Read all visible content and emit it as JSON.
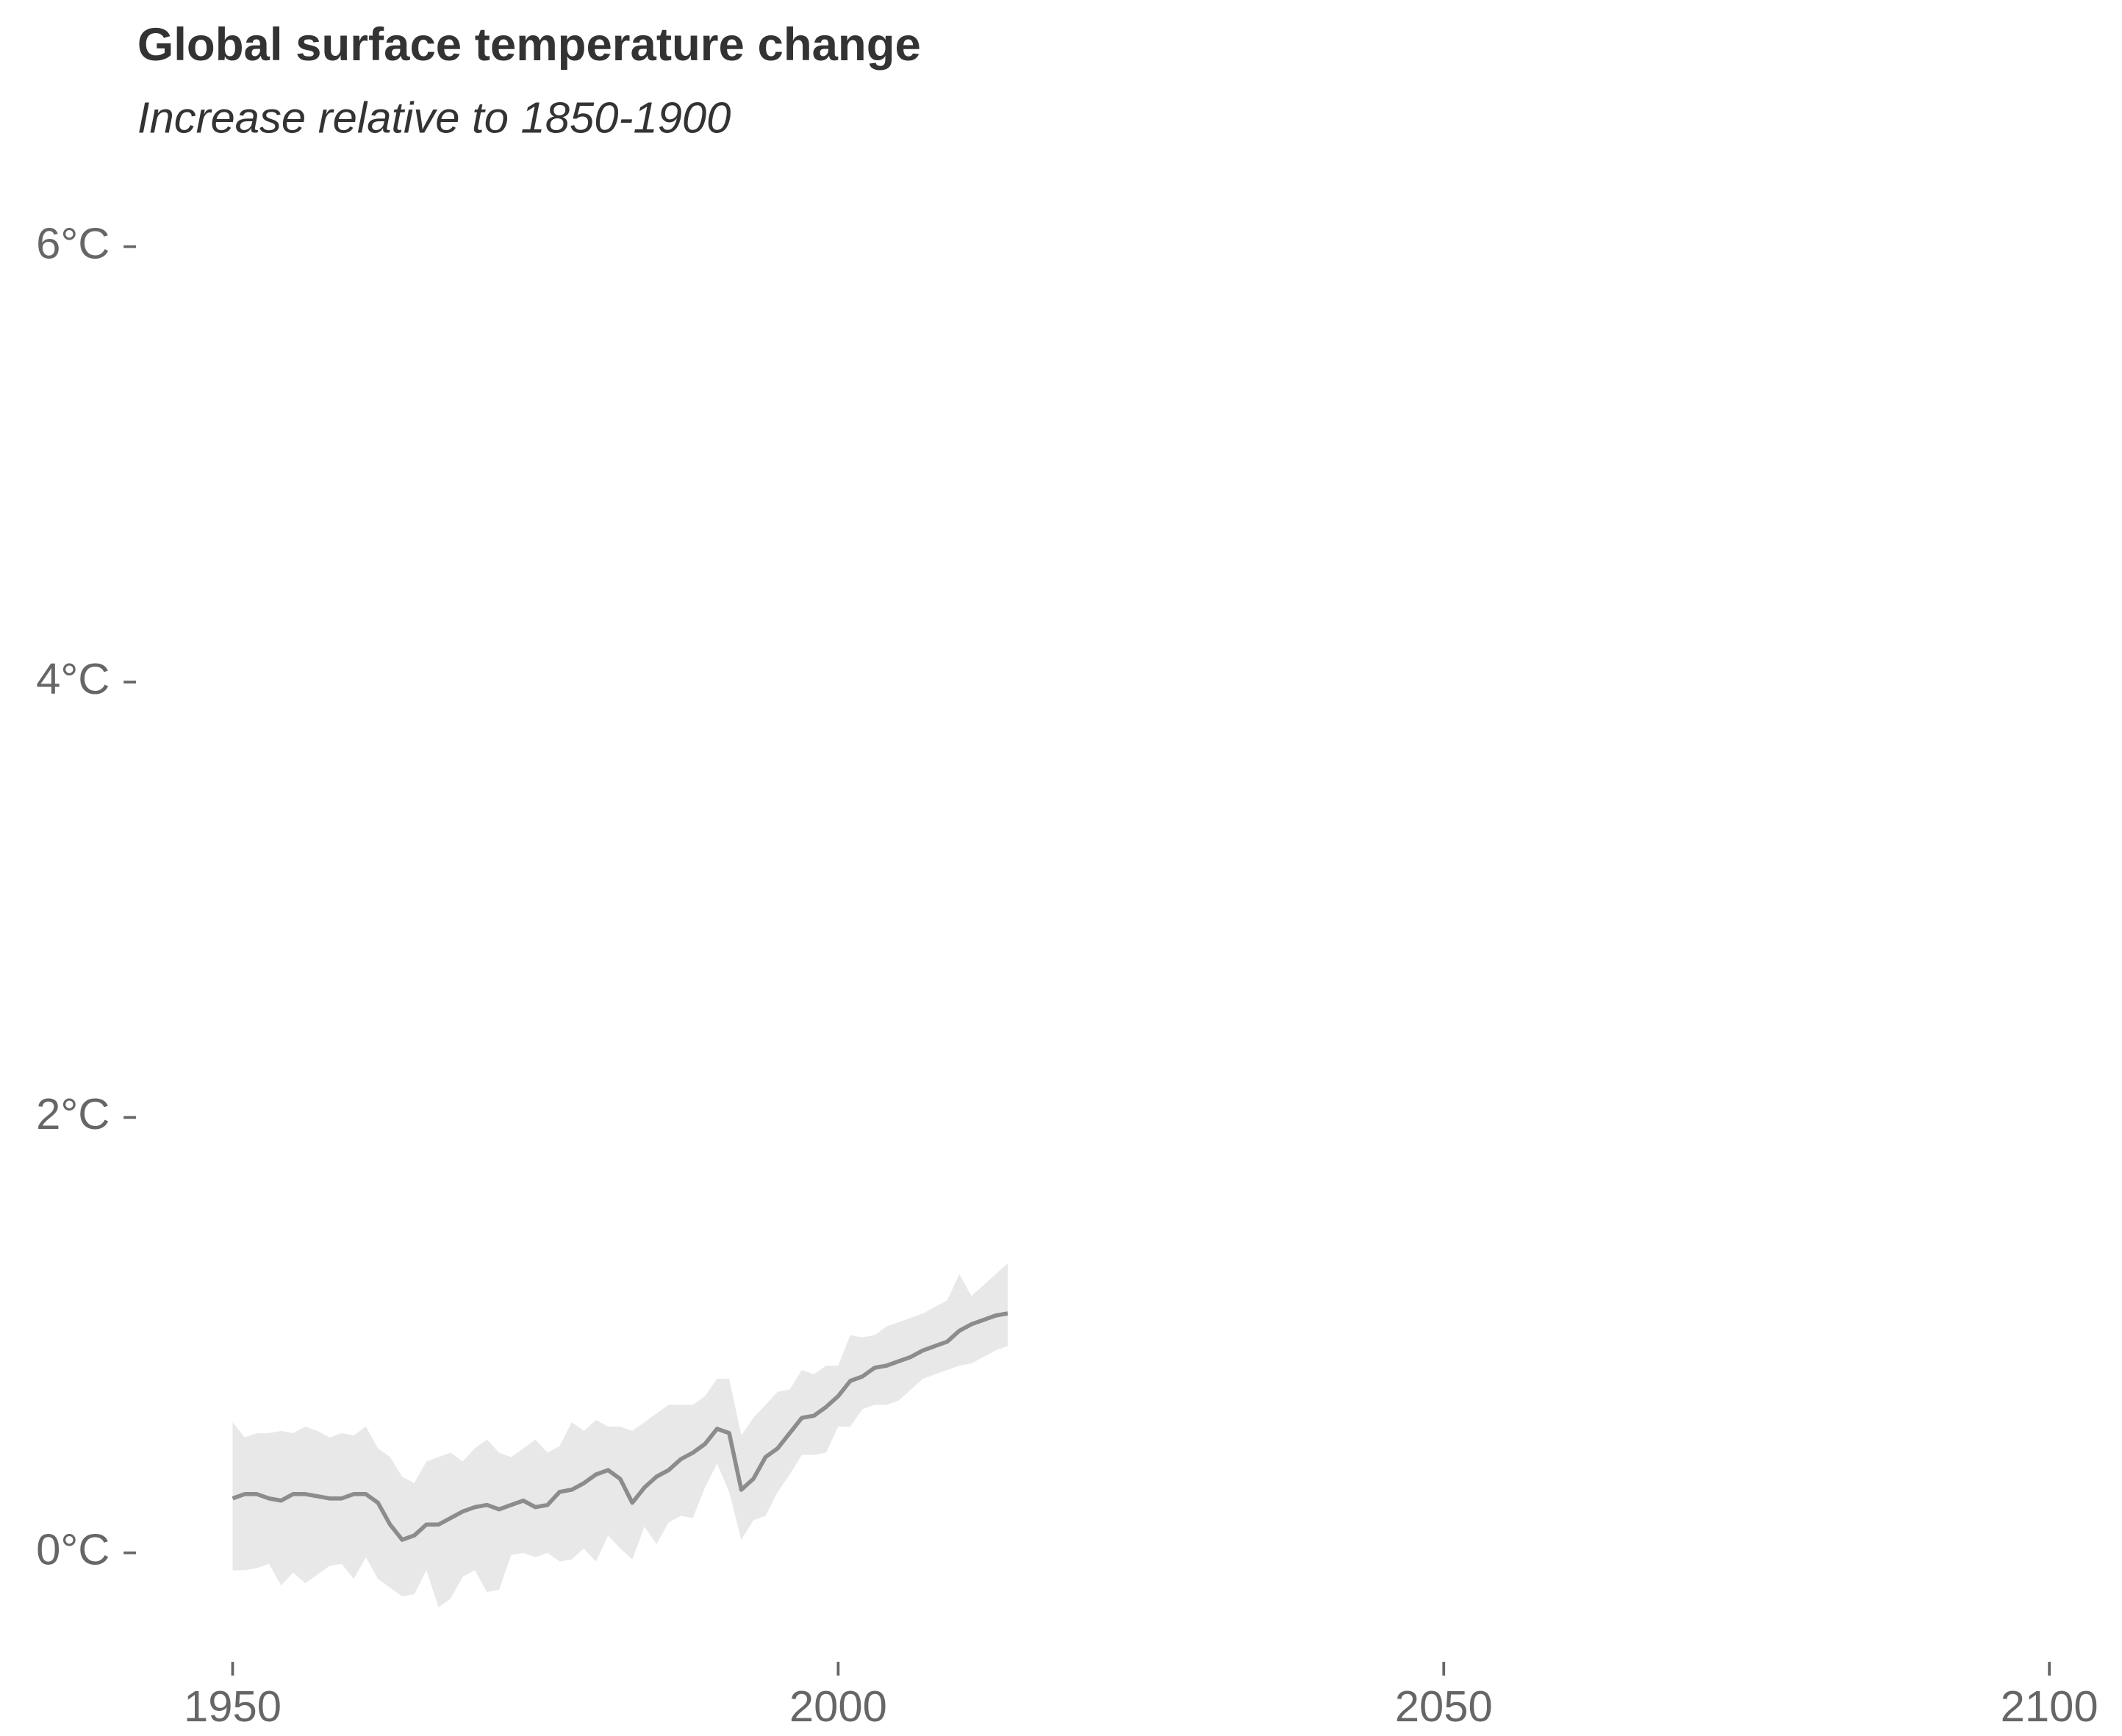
{
  "chart_data": {
    "type": "line",
    "title": "Global surface temperature change",
    "subtitle": "Increase relative to 1850-1900",
    "x": [
      1950,
      1951,
      1952,
      1953,
      1954,
      1955,
      1956,
      1957,
      1958,
      1959,
      1960,
      1961,
      1962,
      1963,
      1964,
      1965,
      1966,
      1967,
      1968,
      1969,
      1970,
      1971,
      1972,
      1973,
      1974,
      1975,
      1976,
      1977,
      1978,
      1979,
      1980,
      1981,
      1982,
      1983,
      1984,
      1985,
      1986,
      1987,
      1988,
      1989,
      1990,
      1991,
      1992,
      1993,
      1994,
      1995,
      1996,
      1997,
      1998,
      1999,
      2000,
      2001,
      2002,
      2003,
      2004,
      2005,
      2006,
      2007,
      2008,
      2009,
      2010,
      2011,
      2012,
      2013,
      2014
    ],
    "values": [
      0.25,
      0.27,
      0.27,
      0.25,
      0.24,
      0.27,
      0.27,
      0.26,
      0.25,
      0.25,
      0.27,
      0.27,
      0.23,
      0.13,
      0.06,
      0.08,
      0.13,
      0.13,
      0.16,
      0.19,
      0.21,
      0.22,
      0.2,
      0.22,
      0.24,
      0.21,
      0.22,
      0.28,
      0.29,
      0.32,
      0.36,
      0.38,
      0.34,
      0.23,
      0.3,
      0.35,
      0.38,
      0.43,
      0.46,
      0.5,
      0.57,
      0.55,
      0.29,
      0.34,
      0.44,
      0.48,
      0.55,
      0.62,
      0.63,
      0.67,
      0.72,
      0.79,
      0.81,
      0.85,
      0.86,
      0.88,
      0.9,
      0.93,
      0.95,
      0.97,
      1.02,
      1.05,
      1.07,
      1.09,
      1.1
    ],
    "upper": [
      0.6,
      0.53,
      0.55,
      0.55,
      0.56,
      0.55,
      0.58,
      0.56,
      0.53,
      0.55,
      0.54,
      0.58,
      0.48,
      0.44,
      0.35,
      0.32,
      0.42,
      0.44,
      0.46,
      0.42,
      0.48,
      0.52,
      0.46,
      0.44,
      0.48,
      0.52,
      0.46,
      0.49,
      0.6,
      0.56,
      0.61,
      0.58,
      0.58,
      0.56,
      0.6,
      0.64,
      0.68,
      0.68,
      0.68,
      0.72,
      0.8,
      0.8,
      0.54,
      0.62,
      0.68,
      0.74,
      0.75,
      0.84,
      0.82,
      0.86,
      0.86,
      1.0,
      0.99,
      1.0,
      1.04,
      1.06,
      1.08,
      1.1,
      1.13,
      1.16,
      1.28,
      1.18,
      1.23,
      1.28,
      1.33
    ],
    "lower": [
      -0.08,
      -0.08,
      -0.07,
      -0.05,
      -0.15,
      -0.09,
      -0.14,
      -0.1,
      -0.06,
      -0.05,
      -0.12,
      -0.02,
      -0.12,
      -0.16,
      -0.2,
      -0.19,
      -0.08,
      -0.25,
      -0.21,
      -0.11,
      -0.08,
      -0.18,
      -0.17,
      -0.01,
      0.0,
      -0.02,
      0.0,
      -0.04,
      -0.03,
      0.02,
      -0.04,
      0.08,
      0.02,
      -0.03,
      0.12,
      0.04,
      0.14,
      0.17,
      0.16,
      0.3,
      0.41,
      0.28,
      0.06,
      0.15,
      0.17,
      0.28,
      0.36,
      0.45,
      0.45,
      0.46,
      0.58,
      0.58,
      0.66,
      0.68,
      0.68,
      0.7,
      0.75,
      0.8,
      0.82,
      0.84,
      0.86,
      0.87,
      0.9,
      0.93,
      0.95
    ],
    "color": "#8c8c8c",
    "band_color": "#e8e8e8",
    "xlim": [
      1941,
      2106
    ],
    "ylim": [
      -0.45,
      6.3
    ],
    "xticks": [
      1950,
      2000,
      2050,
      2100
    ],
    "yticks": [
      {
        "value": 0,
        "label": "0°C"
      },
      {
        "value": 2,
        "label": "2°C"
      },
      {
        "value": 4,
        "label": "4°C"
      },
      {
        "value": 6,
        "label": "6°C"
      }
    ],
    "grid": false
  }
}
